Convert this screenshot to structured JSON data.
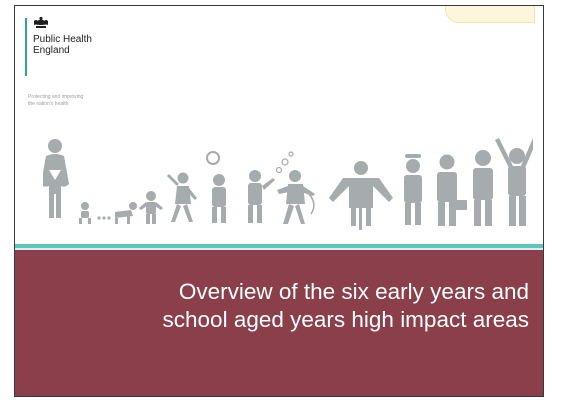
{
  "slide": {
    "organisation_line1": "Public Health",
    "organisation_line2": "England",
    "tagline_line1": "Protecting and improving",
    "tagline_line2": "the nation's health",
    "title_line1": "Overview of the six early years and",
    "title_line2": "school aged years high impact areas"
  },
  "colors": {
    "accent_teal": "#2aa79b",
    "banner_maroon": "#8b3f4a",
    "figure_grey": "#a6abad"
  },
  "icons": {
    "crest": "royal-crest-icon",
    "figures": "life-course-figures-illustration"
  }
}
